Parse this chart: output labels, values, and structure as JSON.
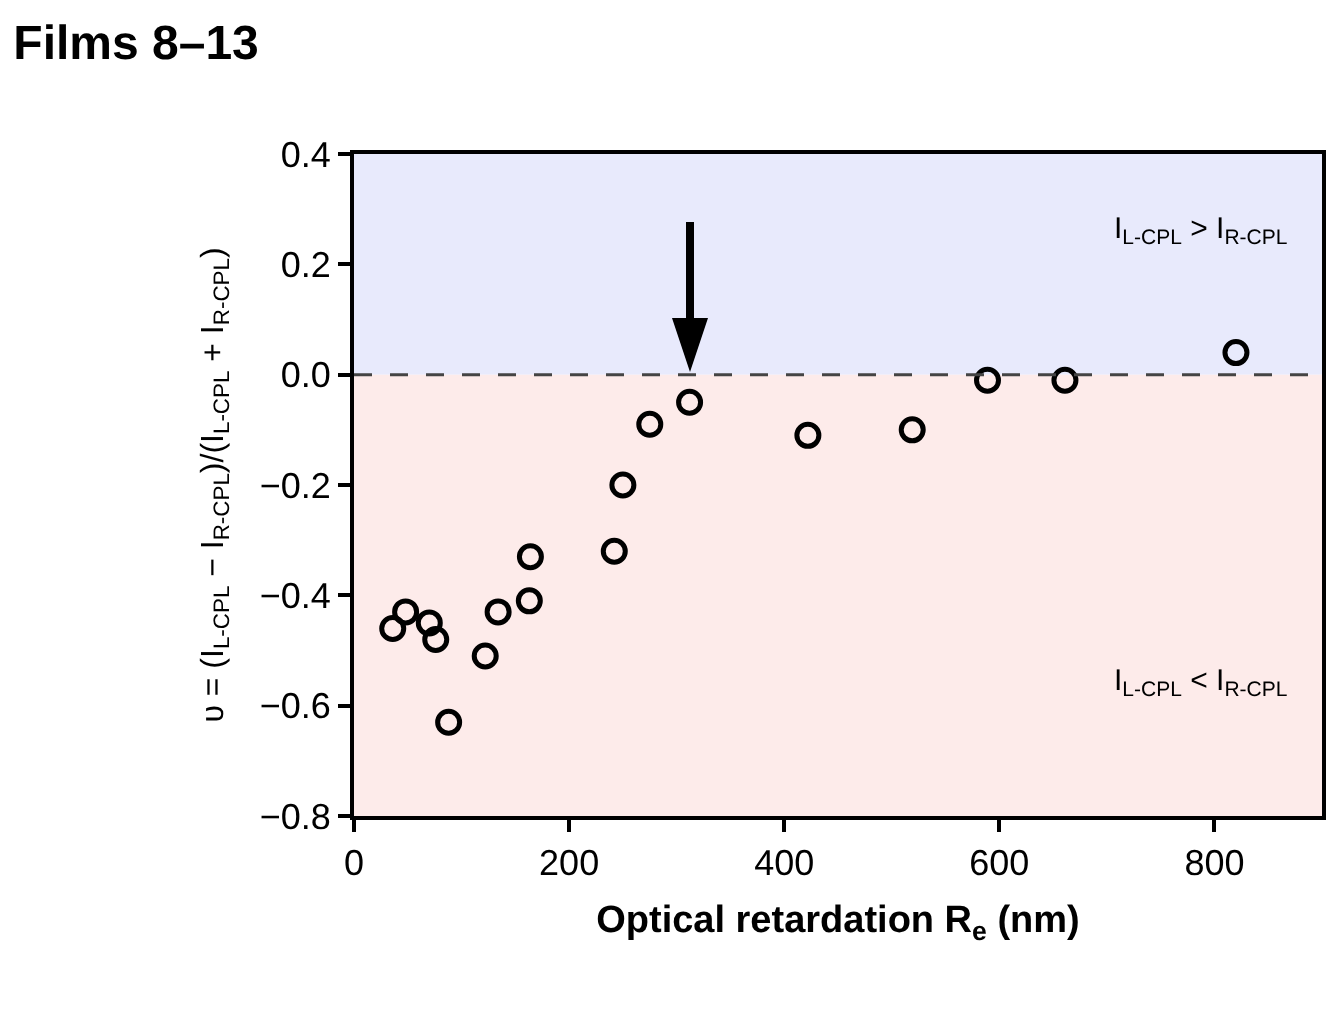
{
  "chart_data": {
    "type": "scatter",
    "title": "Films 8–13",
    "xlabel": "Optical retardation R$_{e}$ (nm)",
    "ylabel": "υ = (I$_{L-CPL}$ − I$_{R-CPL}$)/(I$_{L-CPL}$ + I$_{R-CPL}$)",
    "series": [
      {
        "color": "#000000",
        "x": [
          36,
          48,
          70,
          76,
          88,
          122,
          134,
          163,
          164,
          242,
          250,
          275,
          312,
          422,
          519,
          589,
          661,
          820
        ],
        "values": [
          -0.46,
          -0.43,
          -0.45,
          -0.48,
          -0.63,
          -0.51,
          -0.43,
          -0.41,
          -0.33,
          -0.32,
          -0.2,
          -0.09,
          -0.05,
          -0.11,
          -0.1,
          -0.01,
          -0.01,
          0.04
        ]
      }
    ],
    "marker": "circle",
    "xlim": [
      0,
      900
    ],
    "xticks": [
      0,
      200,
      400,
      600,
      800
    ],
    "ylim": [
      -0.8,
      0.4
    ],
    "yticks": [
      {
        "value": -0.8,
        "label": "−0.8"
      },
      {
        "value": -0.6,
        "label": "−0.6"
      },
      {
        "value": -0.4,
        "label": "−0.4"
      },
      {
        "value": -0.2,
        "label": "−0.2"
      },
      {
        "value": 0,
        "label": "0.0"
      },
      {
        "value": 0.2,
        "label": "0.2"
      },
      {
        "value": 0.4,
        "label": "0.4"
      }
    ],
    "grid": false,
    "ref_lines": [
      {
        "axis": "y",
        "value": 0,
        "color": "#444444",
        "line_style": "dashed"
      }
    ],
    "bands": [
      {
        "axis": "y",
        "from": 0,
        "to": 0.4,
        "color": "#e8eafc",
        "label": "I$_{L-CPL}$ > I$_{R-CPL}$"
      },
      {
        "axis": "y",
        "from": -0.8,
        "to": 0,
        "color": "#fdebea",
        "label": "I$_{L-CPL}$ < I$_{R-CPL}$"
      }
    ]
  }
}
